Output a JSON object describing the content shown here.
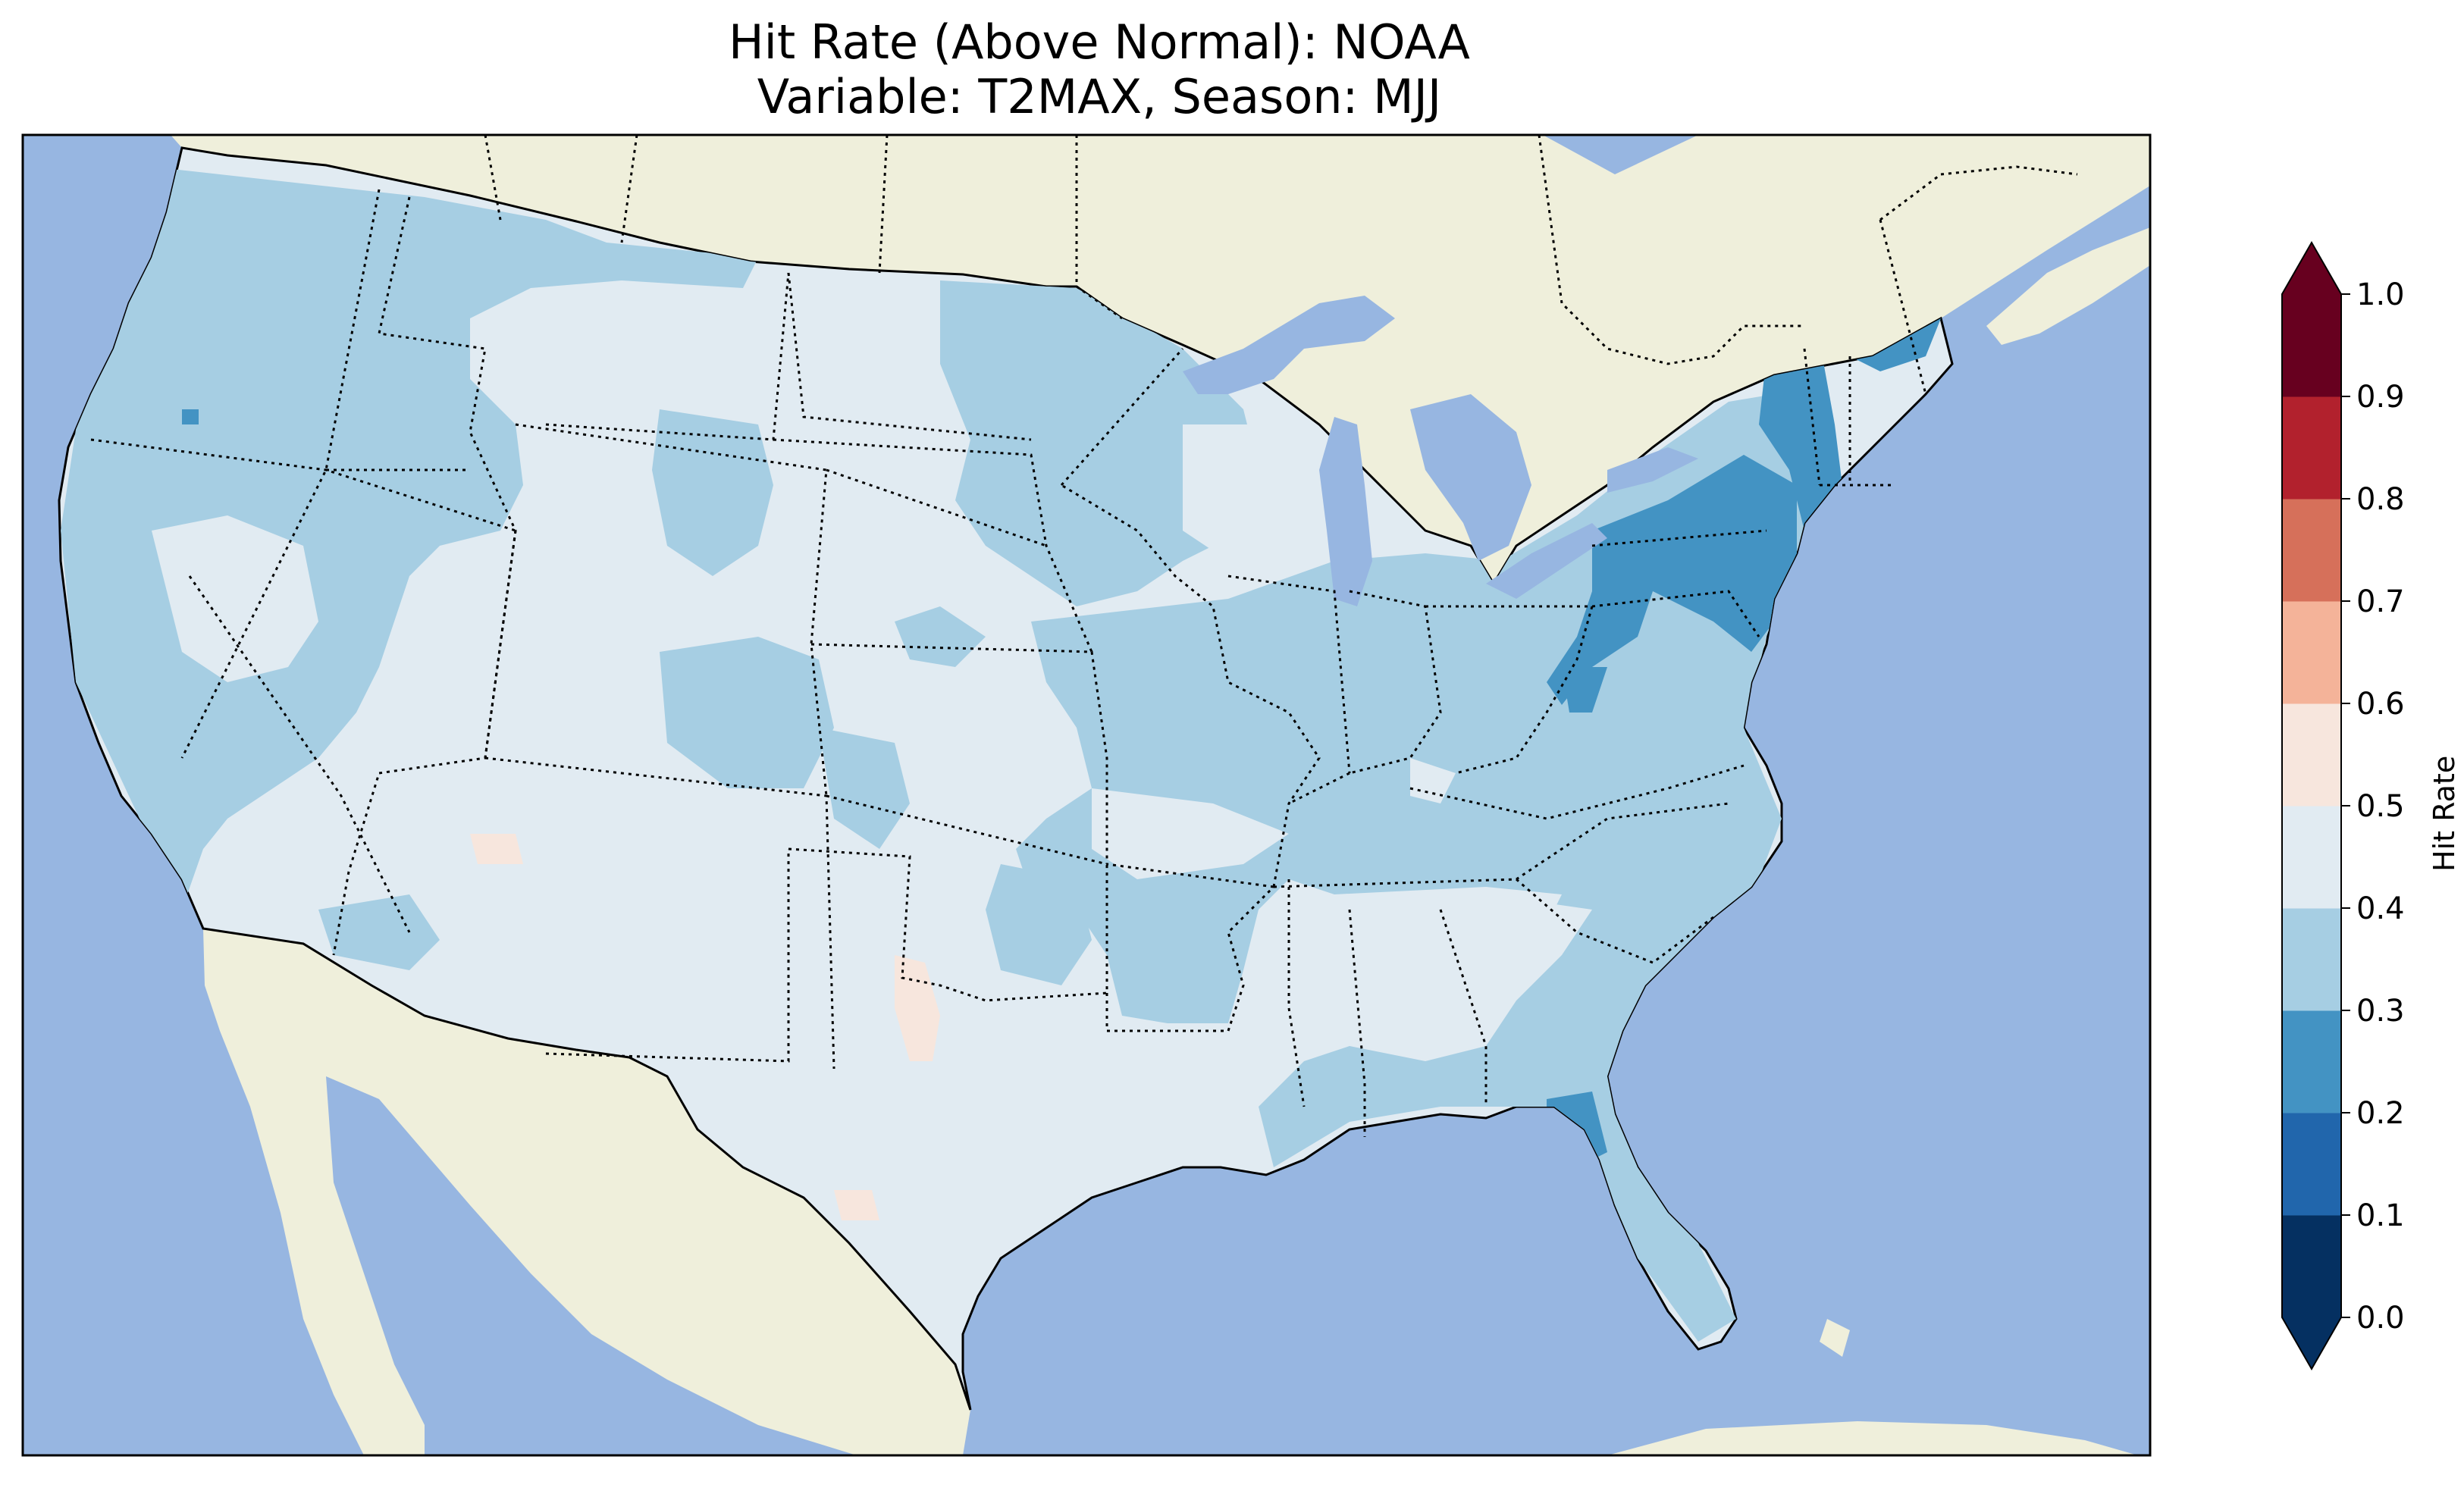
{
  "title": {
    "line1": "Hit Rate (Above Normal): NOAA",
    "line2": "Variable: T2MAX, Season: MJJ"
  },
  "colorbar": {
    "label": "Hit Rate",
    "ticks": [
      "0.0",
      "0.1",
      "0.2",
      "0.3",
      "0.4",
      "0.5",
      "0.6",
      "0.7",
      "0.8",
      "0.9",
      "1.0"
    ],
    "bins": [
      {
        "range": [
          0.0,
          0.1
        ],
        "color": "#053061"
      },
      {
        "range": [
          0.1,
          0.2
        ],
        "color": "#2166ac"
      },
      {
        "range": [
          0.2,
          0.3
        ],
        "color": "#4393c3"
      },
      {
        "range": [
          0.3,
          0.4
        ],
        "color": "#a6cee3"
      },
      {
        "range": [
          0.4,
          0.5
        ],
        "color": "#e1ebf2"
      },
      {
        "range": [
          0.5,
          0.6
        ],
        "color": "#f7e6dd"
      },
      {
        "range": [
          0.6,
          0.7
        ],
        "color": "#f4b399"
      },
      {
        "range": [
          0.7,
          0.8
        ],
        "color": "#d6705a"
      },
      {
        "range": [
          0.8,
          0.9
        ],
        "color": "#b2212d"
      },
      {
        "range": [
          0.9,
          1.0
        ],
        "color": "#67001f"
      }
    ],
    "extend": "both"
  },
  "colors": {
    "ocean": "#97b6e1",
    "land": "#efefdb",
    "hit_0_3_0_4": "#a6cee3",
    "hit_0_4_0_5": "#e1ebf2",
    "hit_0_2_0_3": "#4393c3",
    "hit_0_5_0_6": "#f7e6dd"
  },
  "map": {
    "region": "Contiguous United States",
    "features": [
      "coastlines",
      "state borders (dotted)",
      "country borders",
      "great lakes"
    ]
  }
}
